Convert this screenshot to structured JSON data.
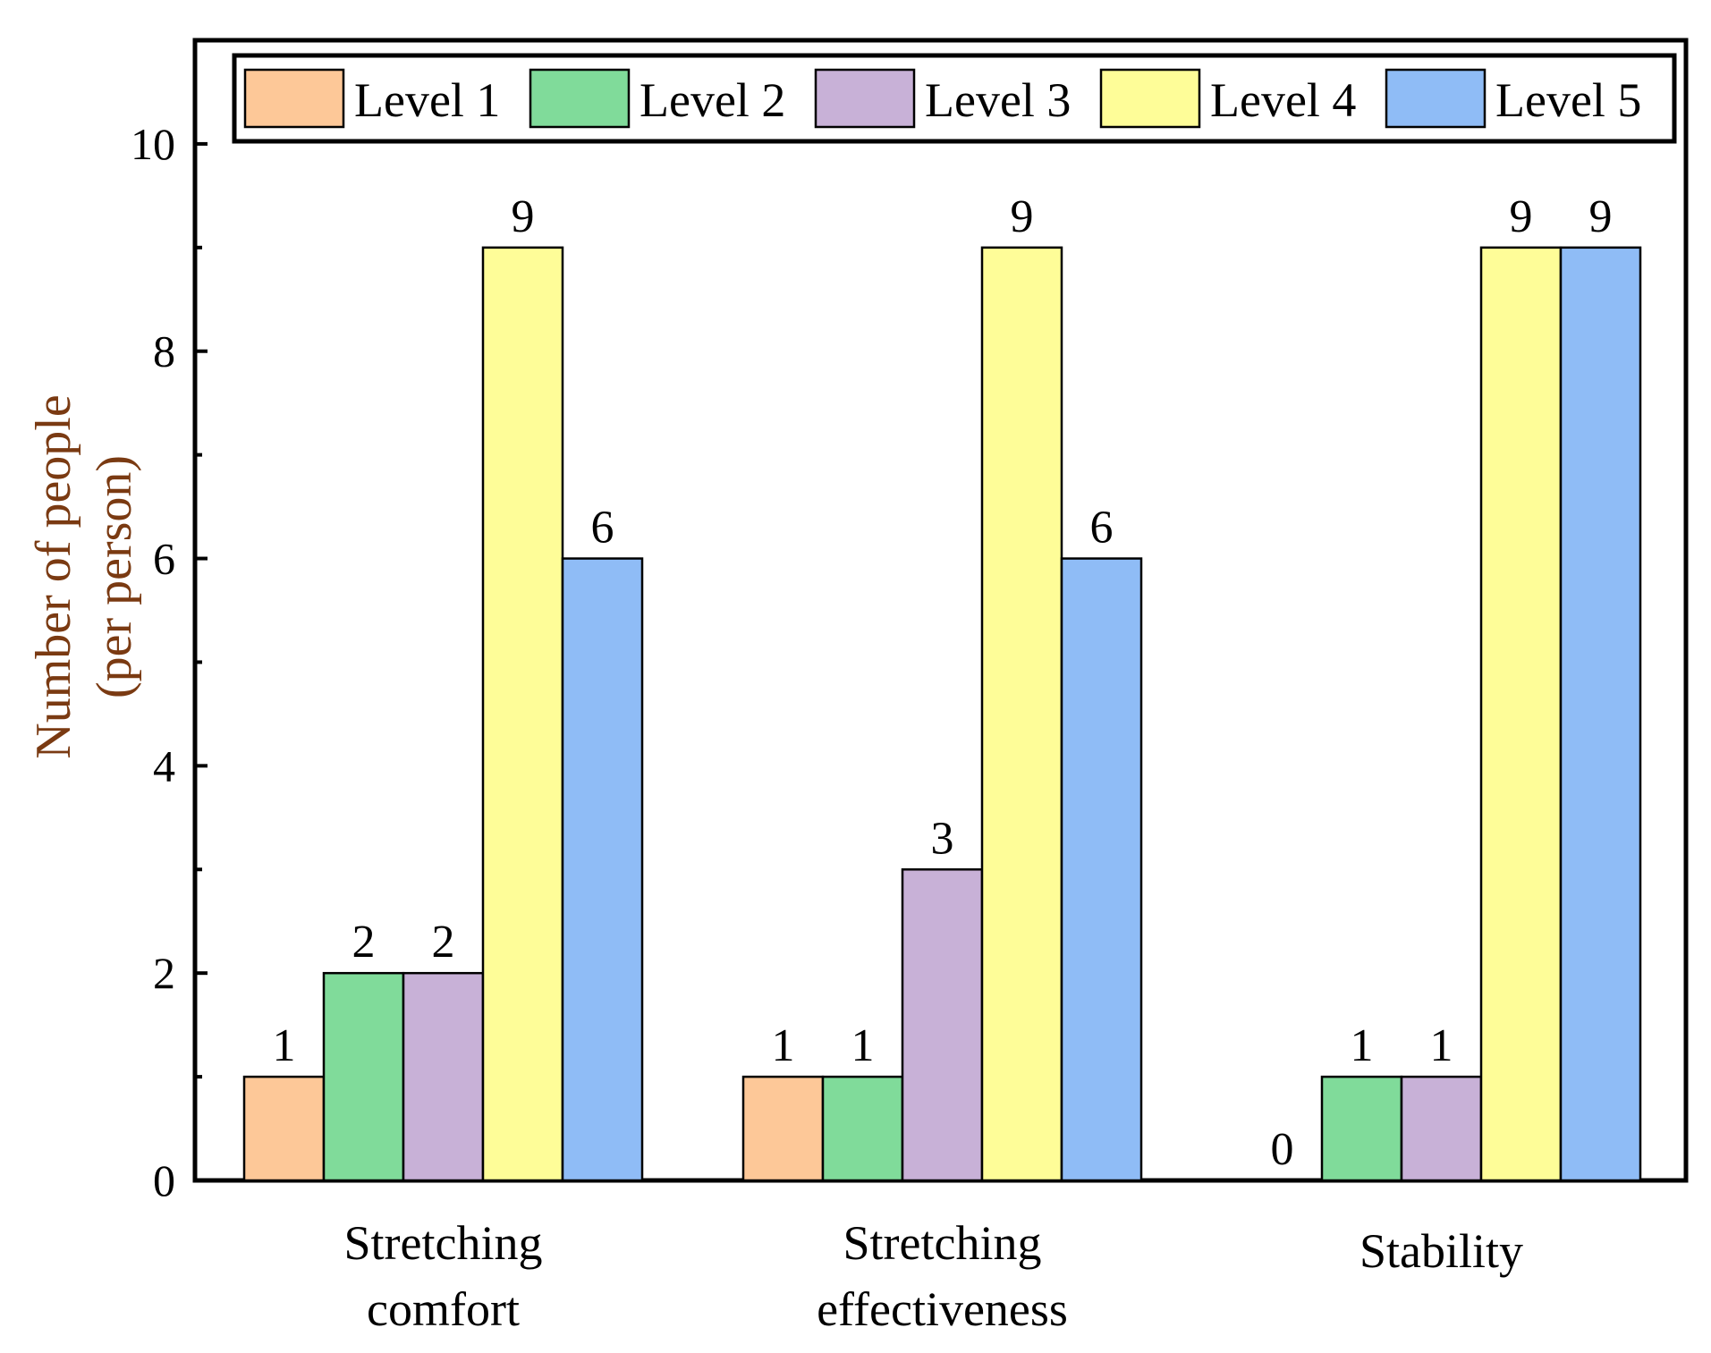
{
  "chart_data": {
    "type": "bar",
    "title": "",
    "xlabel": "",
    "ylabel_lines": [
      "Number of people",
      "(per person)"
    ],
    "ylim": [
      0,
      11
    ],
    "yticks": [
      0,
      2,
      4,
      6,
      8,
      10
    ],
    "minor_yticks": [
      1,
      3,
      5,
      7,
      9
    ],
    "legend_position": "top",
    "categories": [
      [
        "Stretching",
        "comfort"
      ],
      [
        "Stretching",
        "effectiveness"
      ],
      [
        "Stability"
      ]
    ],
    "series": [
      {
        "name": "Level 1",
        "color": "#FDC898",
        "values": [
          1,
          1,
          0
        ]
      },
      {
        "name": "Level 2",
        "color": "#80DB9A",
        "values": [
          2,
          1,
          1
        ]
      },
      {
        "name": "Level 3",
        "color": "#C8B1D7",
        "values": [
          2,
          3,
          1
        ]
      },
      {
        "name": "Level 4",
        "color": "#FEFD98",
        "values": [
          9,
          9,
          9
        ]
      },
      {
        "name": "Level 5",
        "color": "#8FBCF6",
        "values": [
          6,
          6,
          9
        ]
      }
    ]
  }
}
